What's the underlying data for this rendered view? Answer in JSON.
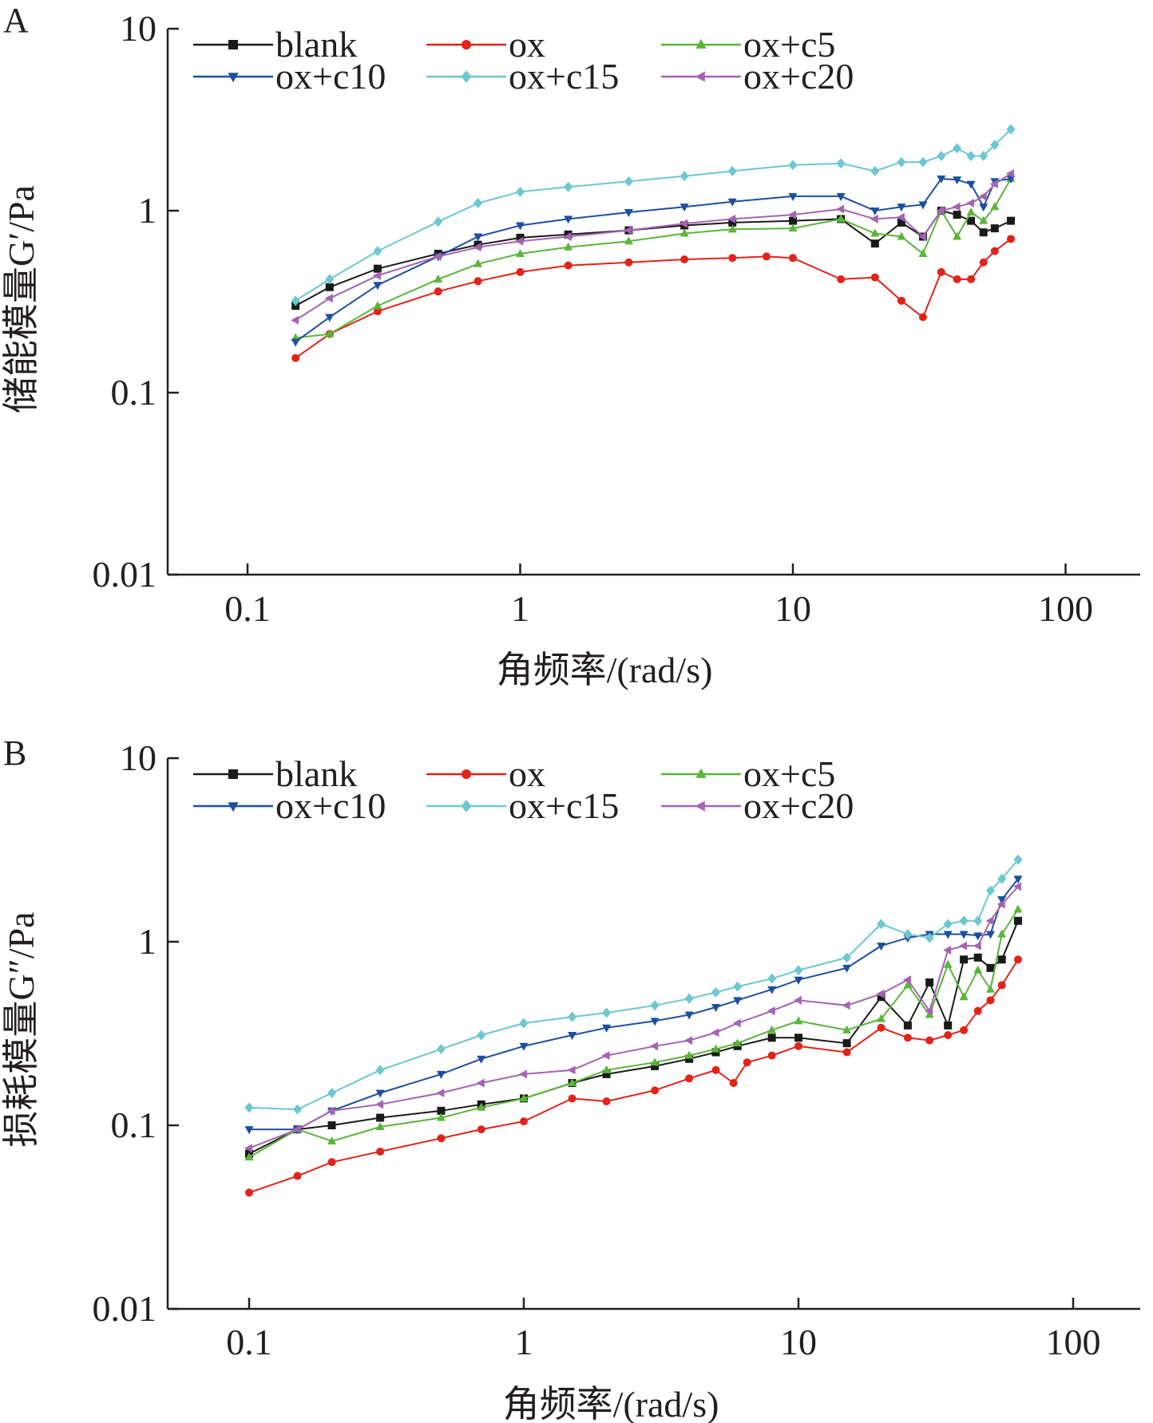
{
  "figure": {
    "colors": {
      "blank": "#1a1a1a",
      "ox": "#e32219",
      "ox+c5": "#5ab53a",
      "ox+c10": "#1d4f9f",
      "ox+c15": "#6cc7cf",
      "ox+c20": "#a464b2"
    }
  },
  "chart_data": [
    {
      "panel": "A",
      "type": "line",
      "xscale": "log",
      "yscale": "log",
      "xlabel": "角频率/(rad/s)",
      "ylabel": "储能模量G′/Pa",
      "xlim": [
        0.05,
        200
      ],
      "ylim": [
        0.01,
        10
      ],
      "xticks": [
        0.1,
        1,
        10,
        100
      ],
      "xtick_labels": [
        "0.1",
        "1",
        "10",
        "100"
      ],
      "yticks": [
        0.01,
        0.1,
        1,
        10
      ],
      "ytick_labels": [
        "0.01",
        "0.1",
        "1",
        "10"
      ],
      "grid": false,
      "legend_position": "top-left",
      "series": [
        {
          "name": "blank",
          "marker": "square",
          "x": [
            0.15,
            0.2,
            0.3,
            0.5,
            0.7,
            1.0,
            1.5,
            2.5,
            4,
            6,
            10,
            15,
            20,
            25,
            30,
            35,
            40,
            45,
            50,
            55,
            63
          ],
          "y": [
            0.3,
            0.38,
            0.48,
            0.58,
            0.65,
            0.71,
            0.74,
            0.78,
            0.83,
            0.86,
            0.88,
            0.9,
            0.66,
            0.86,
            0.72,
            1.0,
            0.95,
            0.88,
            0.76,
            0.8,
            0.88
          ]
        },
        {
          "name": "ox",
          "marker": "circle",
          "x": [
            0.15,
            0.2,
            0.3,
            0.5,
            0.7,
            1.0,
            1.5,
            2.5,
            4,
            6,
            8,
            10,
            15,
            20,
            25,
            30,
            35,
            40,
            45,
            50,
            55,
            63
          ],
          "y": [
            0.155,
            0.21,
            0.28,
            0.36,
            0.41,
            0.46,
            0.5,
            0.52,
            0.54,
            0.55,
            0.56,
            0.55,
            0.42,
            0.43,
            0.32,
            0.26,
            0.46,
            0.42,
            0.42,
            0.52,
            0.6,
            0.7
          ]
        },
        {
          "name": "ox+c5",
          "marker": "triangle-up",
          "x": [
            0.15,
            0.2,
            0.3,
            0.5,
            0.7,
            1.0,
            1.5,
            2.5,
            4,
            6,
            10,
            15,
            20,
            25,
            30,
            35,
            40,
            45,
            50,
            55,
            63
          ],
          "y": [
            0.2,
            0.21,
            0.3,
            0.42,
            0.51,
            0.58,
            0.63,
            0.68,
            0.75,
            0.79,
            0.8,
            0.9,
            0.75,
            0.72,
            0.58,
            1.0,
            0.72,
            0.98,
            0.88,
            1.05,
            1.5
          ]
        },
        {
          "name": "ox+c10",
          "marker": "triangle-down",
          "x": [
            0.15,
            0.2,
            0.3,
            0.5,
            0.7,
            1.0,
            1.5,
            2.5,
            4,
            6,
            10,
            15,
            20,
            25,
            30,
            35,
            40,
            45,
            50,
            55,
            63
          ],
          "y": [
            0.19,
            0.26,
            0.39,
            0.56,
            0.72,
            0.83,
            0.9,
            0.98,
            1.05,
            1.12,
            1.2,
            1.2,
            1.0,
            1.05,
            1.08,
            1.5,
            1.48,
            1.4,
            1.05,
            1.45,
            1.5
          ]
        },
        {
          "name": "ox+c15",
          "marker": "diamond",
          "x": [
            0.15,
            0.2,
            0.3,
            0.5,
            0.7,
            1.0,
            1.5,
            2.5,
            4,
            6,
            10,
            15,
            20,
            25,
            30,
            35,
            40,
            45,
            50,
            55,
            63
          ],
          "y": [
            0.32,
            0.42,
            0.6,
            0.87,
            1.1,
            1.27,
            1.35,
            1.45,
            1.55,
            1.65,
            1.78,
            1.82,
            1.65,
            1.85,
            1.85,
            2.0,
            2.2,
            2.0,
            2.0,
            2.3,
            2.8
          ]
        },
        {
          "name": "ox+c20",
          "marker": "triangle-left",
          "x": [
            0.15,
            0.2,
            0.3,
            0.5,
            0.7,
            1.0,
            1.5,
            2.5,
            4,
            6,
            10,
            15,
            20,
            25,
            30,
            35,
            40,
            45,
            50,
            55,
            63
          ],
          "y": [
            0.25,
            0.33,
            0.44,
            0.56,
            0.63,
            0.68,
            0.72,
            0.78,
            0.85,
            0.9,
            0.95,
            1.02,
            0.9,
            0.92,
            0.72,
            1.0,
            1.05,
            1.1,
            1.2,
            1.4,
            1.6
          ]
        }
      ]
    },
    {
      "panel": "B",
      "type": "line",
      "xscale": "log",
      "yscale": "log",
      "xlabel": "角频率/(rad/s)",
      "ylabel": "损耗模量G″/Pa",
      "xlim": [
        0.05,
        200
      ],
      "ylim": [
        0.01,
        10
      ],
      "xticks": [
        0.1,
        1,
        10,
        100
      ],
      "xtick_labels": [
        "0.1",
        "1",
        "10",
        "100"
      ],
      "yticks": [
        0.01,
        0.1,
        1,
        10
      ],
      "ytick_labels": [
        "0.01",
        "0.1",
        "1",
        "10"
      ],
      "grid": false,
      "legend_position": "top-left",
      "series": [
        {
          "name": "blank",
          "marker": "square",
          "x": [
            0.1,
            0.15,
            0.2,
            0.3,
            0.5,
            0.7,
            1.0,
            1.5,
            2,
            3,
            4,
            5,
            6,
            8,
            10,
            15,
            20,
            25,
            30,
            35,
            40,
            45,
            50,
            55,
            63
          ],
          "y": [
            0.07,
            0.095,
            0.1,
            0.11,
            0.12,
            0.13,
            0.14,
            0.17,
            0.19,
            0.21,
            0.23,
            0.25,
            0.27,
            0.3,
            0.3,
            0.28,
            0.5,
            0.35,
            0.6,
            0.35,
            0.8,
            0.82,
            0.72,
            0.8,
            1.3
          ]
        },
        {
          "name": "ox",
          "marker": "circle",
          "x": [
            0.1,
            0.15,
            0.2,
            0.3,
            0.5,
            0.7,
            1.0,
            1.5,
            2,
            3,
            4,
            5,
            5.8,
            6.5,
            8,
            10,
            15,
            20,
            25,
            30,
            35,
            40,
            45,
            50,
            55,
            63
          ],
          "y": [
            0.043,
            0.053,
            0.063,
            0.072,
            0.085,
            0.095,
            0.105,
            0.14,
            0.135,
            0.155,
            0.18,
            0.2,
            0.17,
            0.22,
            0.24,
            0.27,
            0.25,
            0.34,
            0.3,
            0.29,
            0.31,
            0.33,
            0.42,
            0.48,
            0.58,
            0.8
          ]
        },
        {
          "name": "ox+c5",
          "marker": "triangle-up",
          "x": [
            0.1,
            0.15,
            0.2,
            0.3,
            0.5,
            0.7,
            1.0,
            1.5,
            2,
            3,
            4,
            5,
            6,
            8,
            10,
            15,
            20,
            25,
            30,
            35,
            40,
            45,
            50,
            55,
            63
          ],
          "y": [
            0.067,
            0.095,
            0.082,
            0.098,
            0.11,
            0.125,
            0.14,
            0.17,
            0.2,
            0.22,
            0.24,
            0.26,
            0.28,
            0.33,
            0.37,
            0.33,
            0.38,
            0.58,
            0.4,
            0.75,
            0.5,
            0.7,
            0.55,
            1.1,
            1.5
          ]
        },
        {
          "name": "ox+c10",
          "marker": "triangle-down",
          "x": [
            0.1,
            0.15,
            0.2,
            0.3,
            0.5,
            0.7,
            1.0,
            1.5,
            2,
            3,
            4,
            5,
            6,
            8,
            10,
            15,
            20,
            25,
            30,
            35,
            40,
            45,
            50,
            55,
            63
          ],
          "y": [
            0.095,
            0.095,
            0.12,
            0.15,
            0.19,
            0.23,
            0.27,
            0.31,
            0.34,
            0.37,
            0.4,
            0.44,
            0.48,
            0.55,
            0.62,
            0.72,
            0.95,
            1.05,
            1.1,
            1.1,
            1.1,
            1.08,
            1.1,
            1.7,
            2.2
          ]
        },
        {
          "name": "ox+c15",
          "marker": "diamond",
          "x": [
            0.1,
            0.15,
            0.2,
            0.3,
            0.5,
            0.7,
            1.0,
            1.5,
            2,
            3,
            4,
            5,
            6,
            8,
            10,
            15,
            20,
            25,
            30,
            35,
            40,
            45,
            50,
            55,
            63
          ],
          "y": [
            0.125,
            0.122,
            0.15,
            0.2,
            0.26,
            0.31,
            0.36,
            0.39,
            0.41,
            0.45,
            0.49,
            0.53,
            0.57,
            0.63,
            0.7,
            0.82,
            1.25,
            1.1,
            1.05,
            1.25,
            1.3,
            1.3,
            1.9,
            2.2,
            2.8
          ]
        },
        {
          "name": "ox+c20",
          "marker": "triangle-left",
          "x": [
            0.1,
            0.15,
            0.2,
            0.3,
            0.5,
            0.7,
            1.0,
            1.5,
            2,
            3,
            4,
            5,
            6,
            8,
            10,
            15,
            20,
            25,
            30,
            35,
            40,
            45,
            50,
            55,
            63
          ],
          "y": [
            0.075,
            0.095,
            0.12,
            0.13,
            0.15,
            0.17,
            0.19,
            0.2,
            0.24,
            0.27,
            0.29,
            0.32,
            0.36,
            0.42,
            0.48,
            0.45,
            0.52,
            0.62,
            0.42,
            0.9,
            0.95,
            0.95,
            1.3,
            1.6,
            2.0
          ]
        }
      ]
    }
  ]
}
